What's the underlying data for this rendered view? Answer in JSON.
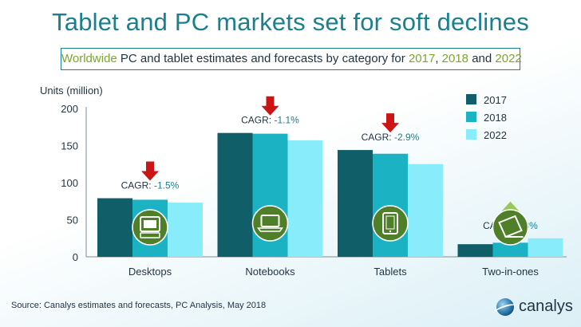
{
  "title": "Tablet and PC markets set for soft declines",
  "subtitle": {
    "part1": "Worldwide",
    "part2": " PC and tablet estimates and forecasts by category for ",
    "y1": "2017",
    "sep1": ", ",
    "y2": "2018",
    "sep2": " and ",
    "y3": "2022"
  },
  "source": "Source: Canalys estimates and forecasts, PC Analysis, May 2018",
  "logo": {
    "text": "canalys",
    "icon": "globe-logo-icon"
  },
  "colors": {
    "title": "#1a7f8f",
    "highlight": "#7aa52e",
    "series": [
      "#0f5e68",
      "#1bb3c4",
      "#88ecfa"
    ],
    "down_arrow": "#cc1414",
    "up_arrow": "#97c95a",
    "icon_circle": "#4f7f28"
  },
  "chart_data": {
    "type": "bar",
    "ylabel": "Units (million)",
    "ylim": [
      0,
      200
    ],
    "yticks": [
      0,
      50,
      100,
      150,
      200
    ],
    "grid": false,
    "legend_position": "top-right",
    "categories": [
      "Desktops",
      "Notebooks",
      "Tablets",
      "Two-in-ones"
    ],
    "series": [
      {
        "name": "2017",
        "values": [
          79,
          167,
          144,
          17
        ]
      },
      {
        "name": "2018",
        "values": [
          77,
          166,
          139,
          19
        ]
      },
      {
        "name": "2022",
        "values": [
          73,
          157,
          125,
          25
        ]
      }
    ],
    "annotations": [
      {
        "category": "Desktops",
        "text": "CAGR: ",
        "value": "-1.5%",
        "direction": "down",
        "icon": "desktop-icon"
      },
      {
        "category": "Notebooks",
        "text": "CAGR: ",
        "value": "-1.1%",
        "direction": "down",
        "icon": "laptop-icon"
      },
      {
        "category": "Tablets",
        "text": "CAGR: ",
        "value": "-2.9%",
        "direction": "down",
        "icon": "tablet-icon"
      },
      {
        "category": "Two-in-ones",
        "text": "CAGR: ",
        "value": "8.8%",
        "direction": "up",
        "icon": "two-in-one-icon"
      }
    ]
  }
}
